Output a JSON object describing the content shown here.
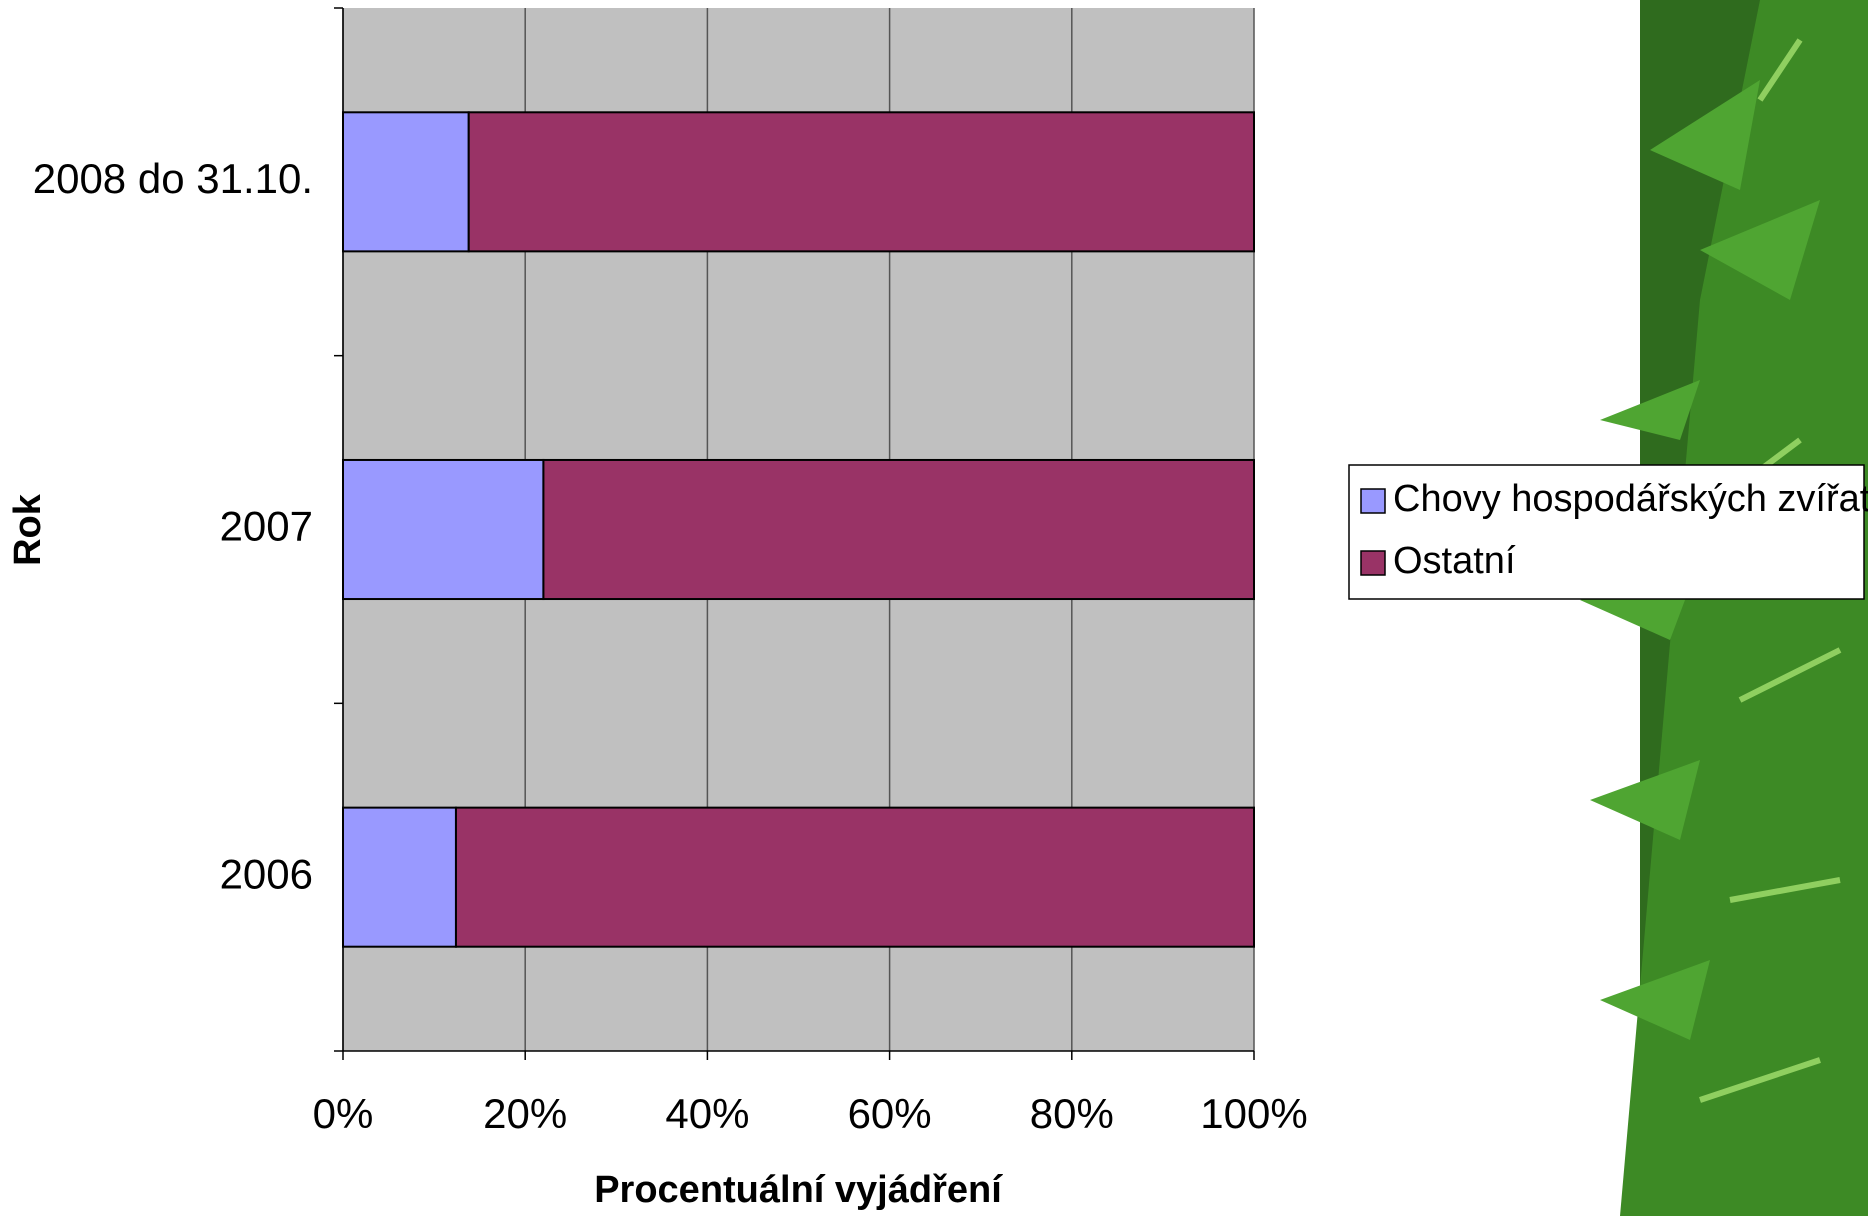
{
  "chart_data": {
    "type": "stacked_bar_horizontal",
    "x_label": "Procentuální vyjádření",
    "y_label": "Rok",
    "categories": [
      "2008 do 31.10.",
      "2007",
      "2006"
    ],
    "series": [
      {
        "name": "Chovy hospodářských zvířat",
        "color": "#9999ff",
        "values": [
          13.8,
          22,
          12.4
        ]
      },
      {
        "name": "Ostatní",
        "color": "#993366",
        "values": [
          86.2,
          78,
          87.6
        ]
      }
    ],
    "xlim": [
      0,
      100
    ],
    "xticks": [
      {
        "value": 0,
        "label": "0%"
      },
      {
        "value": 20,
        "label": "20%"
      },
      {
        "value": 40,
        "label": "40%"
      },
      {
        "value": 60,
        "label": "60%"
      },
      {
        "value": 80,
        "label": "80%"
      },
      {
        "value": 100,
        "label": "100%"
      }
    ],
    "grid": true,
    "plot_background": "#c0c0c0",
    "legend_position": "right"
  }
}
